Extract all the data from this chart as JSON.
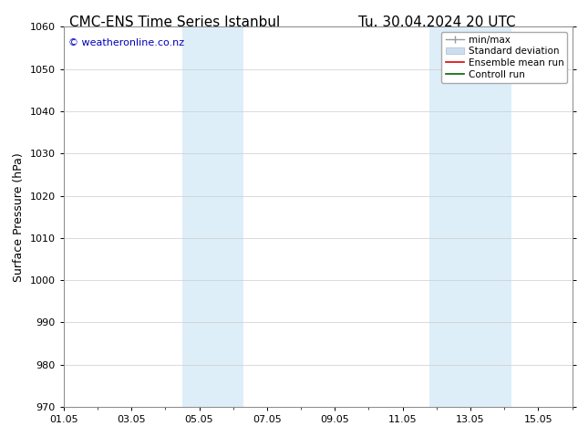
{
  "title_left": "CMC-ENS Time Series Istanbul",
  "title_right": "Tu. 30.04.2024 20 UTC",
  "ylabel": "Surface Pressure (hPa)",
  "xlabel": "",
  "ylim": [
    970,
    1060
  ],
  "yticks": [
    970,
    980,
    990,
    1000,
    1010,
    1020,
    1030,
    1040,
    1050,
    1060
  ],
  "xtick_labels": [
    "01.05",
    "03.05",
    "05.05",
    "07.05",
    "09.05",
    "11.05",
    "13.05",
    "15.05"
  ],
  "xtick_positions": [
    0,
    2,
    4,
    6,
    8,
    10,
    12,
    14
  ],
  "xlim": [
    0,
    15
  ],
  "shaded_regions": [
    {
      "start": 3.5,
      "end": 5.3,
      "color": "#ddeef8"
    },
    {
      "start": 10.8,
      "end": 13.2,
      "color": "#ddeef8"
    }
  ],
  "copyright_text": "© weatheronline.co.nz",
  "copyright_color": "#0000bb",
  "background_color": "#ffffff",
  "grid_color": "#cccccc",
  "title_fontsize": 11,
  "label_fontsize": 9,
  "tick_fontsize": 8,
  "legend_fontsize": 7.5
}
